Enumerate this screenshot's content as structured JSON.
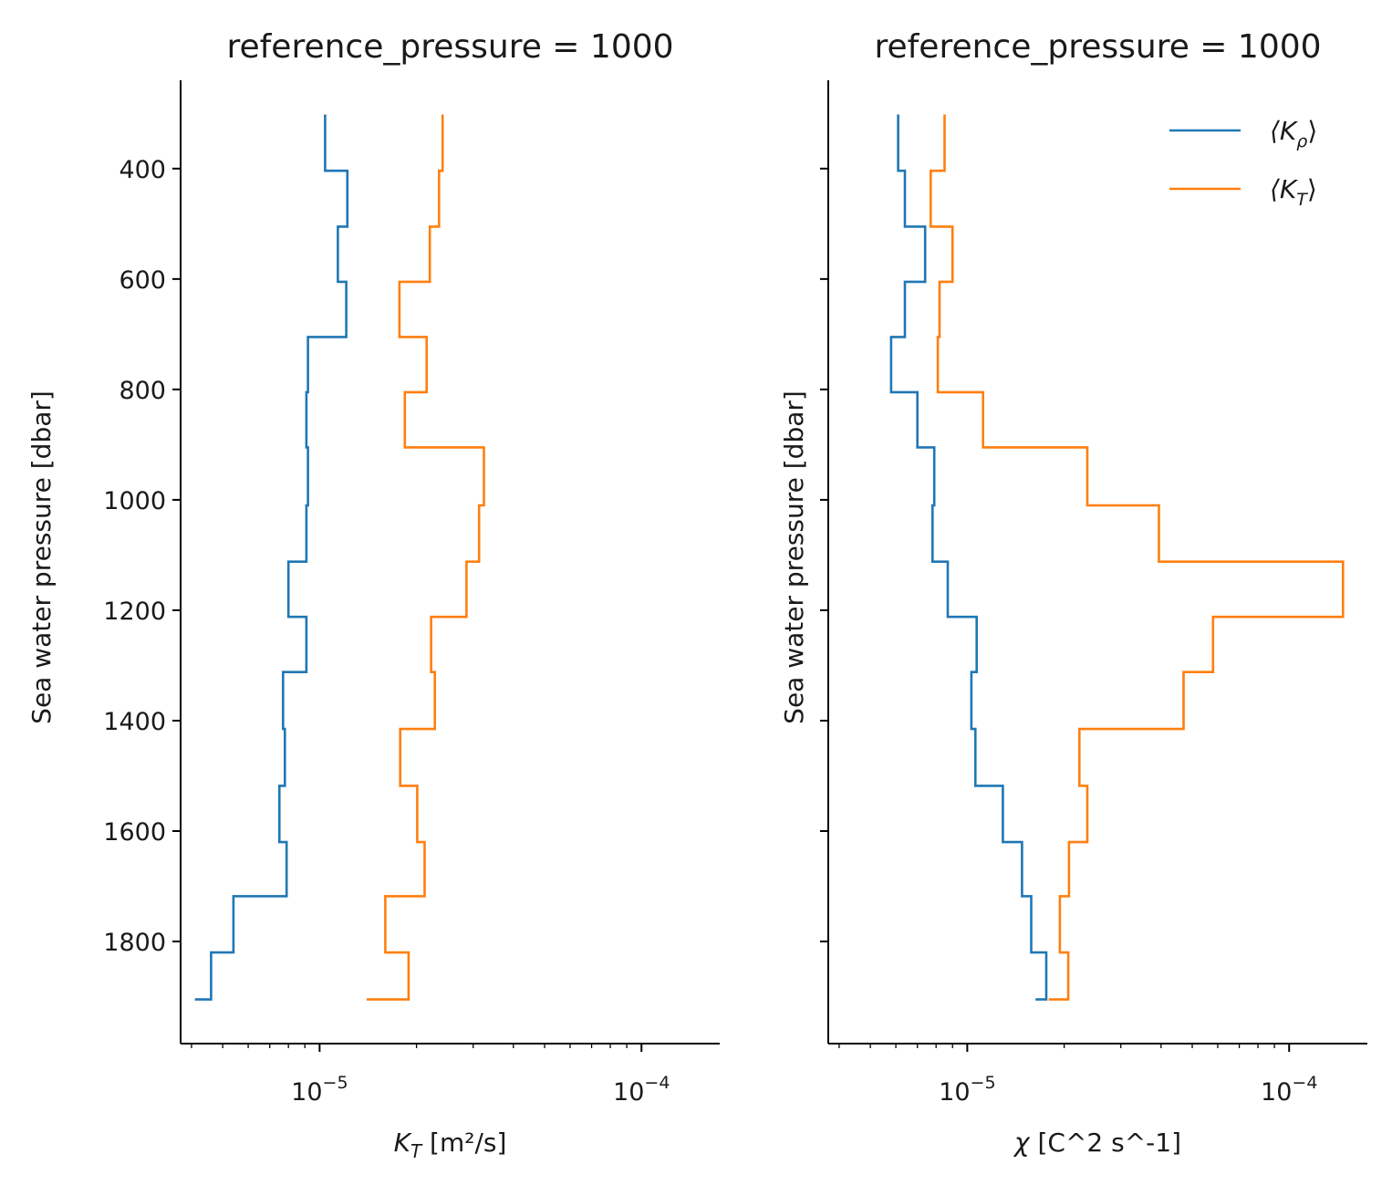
{
  "chart_data": [
    {
      "type": "line",
      "title": "reference_pressure = 1000",
      "xlabel_main": "K",
      "xlabel_sub": "T",
      "xlabel_rest": " [m²/s]",
      "ylabel": "Sea water pressure [dbar]",
      "xscale": "log",
      "xlim": [
        3.7e-06,
        0.000175
      ],
      "ylim": [
        1985,
        240
      ],
      "yinverted": true,
      "xticks": [
        {
          "value": 1e-05,
          "base": "10",
          "exp": "−5"
        },
        {
          "value": 0.0001,
          "base": "10",
          "exp": "−4"
        }
      ],
      "yticks": [
        "400",
        "600",
        "800",
        "1000",
        "1200",
        "1400",
        "1600",
        "1800"
      ],
      "grid": false,
      "legend": null,
      "series": [
        {
          "color": "#1f77b4",
          "steps": [
            {
              "y0": 302,
              "y1": 404,
              "x": 1.04e-05
            },
            {
              "y0": 404,
              "y1": 505,
              "x": 1.22e-05
            },
            {
              "y0": 505,
              "y1": 605,
              "x": 1.14e-05
            },
            {
              "y0": 605,
              "y1": 705,
              "x": 1.21e-05
            },
            {
              "y0": 705,
              "y1": 805,
              "x": 9.2e-06
            },
            {
              "y0": 805,
              "y1": 905,
              "x": 9.1e-06
            },
            {
              "y0": 905,
              "y1": 1010,
              "x": 9.2e-06
            },
            {
              "y0": 1010,
              "y1": 1112,
              "x": 9.1e-06
            },
            {
              "y0": 1112,
              "y1": 1212,
              "x": 8e-06
            },
            {
              "y0": 1212,
              "y1": 1312,
              "x": 9.1e-06
            },
            {
              "y0": 1312,
              "y1": 1415,
              "x": 7.7e-06
            },
            {
              "y0": 1415,
              "y1": 1518,
              "x": 7.8e-06
            },
            {
              "y0": 1518,
              "y1": 1620,
              "x": 7.5e-06
            },
            {
              "y0": 1620,
              "y1": 1718,
              "x": 7.9e-06
            },
            {
              "y0": 1718,
              "y1": 1820,
              "x": 5.4e-06
            },
            {
              "y0": 1820,
              "y1": 1905,
              "x": 4.6e-06
            }
          ],
          "end_x": 4.1e-06
        },
        {
          "color": "#ff7f0e",
          "steps": [
            {
              "y0": 302,
              "y1": 404,
              "x": 2.41e-05
            },
            {
              "y0": 404,
              "y1": 505,
              "x": 2.35e-05
            },
            {
              "y0": 505,
              "y1": 605,
              "x": 2.2e-05
            },
            {
              "y0": 605,
              "y1": 705,
              "x": 1.77e-05
            },
            {
              "y0": 705,
              "y1": 805,
              "x": 2.15e-05
            },
            {
              "y0": 805,
              "y1": 905,
              "x": 1.84e-05
            },
            {
              "y0": 905,
              "y1": 1010,
              "x": 3.24e-05
            },
            {
              "y0": 1010,
              "y1": 1112,
              "x": 3.13e-05
            },
            {
              "y0": 1112,
              "y1": 1212,
              "x": 2.86e-05
            },
            {
              "y0": 1212,
              "y1": 1312,
              "x": 2.22e-05
            },
            {
              "y0": 1312,
              "y1": 1415,
              "x": 2.28e-05
            },
            {
              "y0": 1415,
              "y1": 1518,
              "x": 1.78e-05
            },
            {
              "y0": 1518,
              "y1": 1620,
              "x": 2.01e-05
            },
            {
              "y0": 1620,
              "y1": 1718,
              "x": 2.12e-05
            },
            {
              "y0": 1718,
              "y1": 1820,
              "x": 1.6e-05
            },
            {
              "y0": 1820,
              "y1": 1905,
              "x": 1.89e-05
            }
          ],
          "end_x": 1.4e-05
        }
      ]
    },
    {
      "type": "line",
      "title": "reference_pressure = 1000",
      "xlabel_main": "χ",
      "xlabel_sub": "",
      "xlabel_rest": " [C^2 s^-1]",
      "ylabel": "Sea water pressure [dbar]",
      "xscale": "log",
      "xlim": [
        3.7e-06,
        0.000175
      ],
      "ylim": [
        1985,
        240
      ],
      "yinverted": true,
      "xticks": [
        {
          "value": 1e-05,
          "base": "10",
          "exp": "−5"
        },
        {
          "value": 0.0001,
          "base": "10",
          "exp": "−4"
        }
      ],
      "yticks": [
        "",
        "",
        "",
        "",
        "",
        "",
        "",
        ""
      ],
      "grid": false,
      "legend": {
        "position": "top-right",
        "entries": [
          {
            "label_main": "⟨K",
            "label_sub": "ρ",
            "label_end": "⟩",
            "color": "#1f77b4"
          },
          {
            "label_main": "⟨K",
            "label_sub": "T",
            "label_end": "⟩",
            "color": "#ff7f0e"
          }
        ]
      },
      "series": [
        {
          "color": "#1f77b4",
          "steps": [
            {
              "y0": 302,
              "y1": 404,
              "x": 6.1e-06
            },
            {
              "y0": 404,
              "y1": 505,
              "x": 6.4e-06
            },
            {
              "y0": 505,
              "y1": 605,
              "x": 7.4e-06
            },
            {
              "y0": 605,
              "y1": 705,
              "x": 6.4e-06
            },
            {
              "y0": 705,
              "y1": 805,
              "x": 5.8e-06
            },
            {
              "y0": 805,
              "y1": 905,
              "x": 7e-06
            },
            {
              "y0": 905,
              "y1": 1010,
              "x": 7.9e-06
            },
            {
              "y0": 1010,
              "y1": 1112,
              "x": 7.8e-06
            },
            {
              "y0": 1112,
              "y1": 1212,
              "x": 8.7e-06
            },
            {
              "y0": 1212,
              "y1": 1312,
              "x": 1.07e-05
            },
            {
              "y0": 1312,
              "y1": 1415,
              "x": 1.03e-05
            },
            {
              "y0": 1415,
              "y1": 1518,
              "x": 1.06e-05
            },
            {
              "y0": 1518,
              "y1": 1620,
              "x": 1.29e-05
            },
            {
              "y0": 1620,
              "y1": 1718,
              "x": 1.48e-05
            },
            {
              "y0": 1718,
              "y1": 1820,
              "x": 1.58e-05
            },
            {
              "y0": 1820,
              "y1": 1905,
              "x": 1.76e-05
            }
          ],
          "end_x": 1.63e-05
        },
        {
          "color": "#ff7f0e",
          "steps": [
            {
              "y0": 302,
              "y1": 404,
              "x": 8.5e-06
            },
            {
              "y0": 404,
              "y1": 505,
              "x": 7.7e-06
            },
            {
              "y0": 505,
              "y1": 605,
              "x": 9e-06
            },
            {
              "y0": 605,
              "y1": 705,
              "x": 8.2e-06
            },
            {
              "y0": 705,
              "y1": 805,
              "x": 8.1e-06
            },
            {
              "y0": 805,
              "y1": 905,
              "x": 1.12e-05
            },
            {
              "y0": 905,
              "y1": 1010,
              "x": 2.36e-05
            },
            {
              "y0": 1010,
              "y1": 1112,
              "x": 3.94e-05
            },
            {
              "y0": 1112,
              "y1": 1212,
              "x": 0.000147
            },
            {
              "y0": 1212,
              "y1": 1312,
              "x": 5.8e-05
            },
            {
              "y0": 1312,
              "y1": 1415,
              "x": 4.7e-05
            },
            {
              "y0": 1415,
              "y1": 1518,
              "x": 2.23e-05
            },
            {
              "y0": 1518,
              "y1": 1620,
              "x": 2.36e-05
            },
            {
              "y0": 1620,
              "y1": 1718,
              "x": 2.07e-05
            },
            {
              "y0": 1718,
              "y1": 1820,
              "x": 1.94e-05
            },
            {
              "y0": 1820,
              "y1": 1905,
              "x": 2.06e-05
            }
          ],
          "end_x": 1.79e-05
        }
      ]
    }
  ]
}
